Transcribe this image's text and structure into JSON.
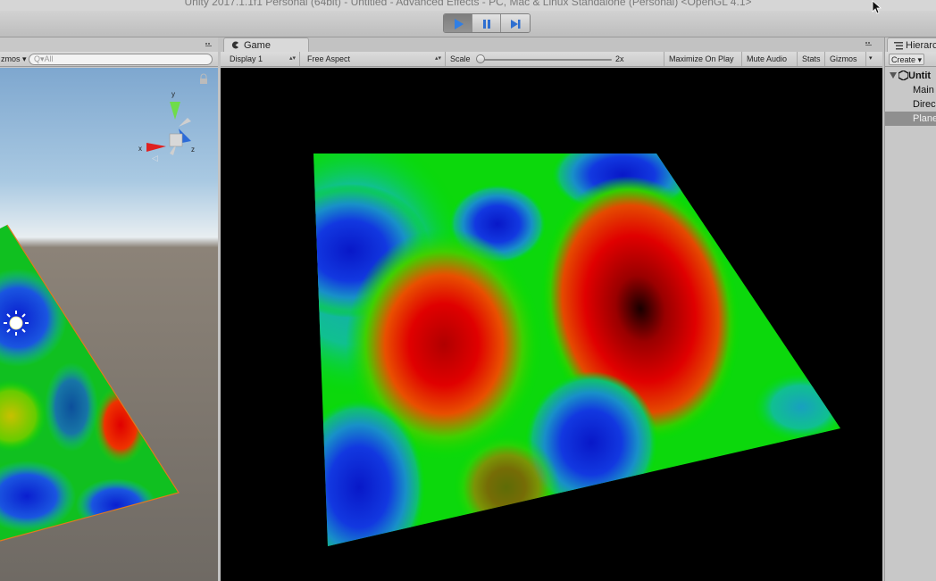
{
  "window": {
    "title": "Unity 2017.1.1f1 Personal (64bit) - Untitled - Advanced Effects - PC, Mac & Linux Standalone (Personal) <OpenGL 4.1>"
  },
  "toolbar": {
    "play_icon": "play-icon",
    "pause_icon": "pause-icon",
    "step_icon": "step-icon",
    "accent": "#3a7be0"
  },
  "scene": {
    "gizmos_label": "zmos ▾",
    "search_placeholder": "Q▾All"
  },
  "game": {
    "tab_label": "Game",
    "display_label": "Display 1",
    "aspect_label": "Free Aspect",
    "scale_label": "Scale",
    "scale_value": "2x",
    "maximize_label": "Maximize On Play",
    "mute_label": "Mute Audio",
    "stats_label": "Stats",
    "gizmos_label": "Gizmos"
  },
  "hierarchy": {
    "tab_label": "Hierarc",
    "create_label": "Create ▾",
    "scene_name": "Untit",
    "items": [
      {
        "label": "Main",
        "selected": false
      },
      {
        "label": "Direc",
        "selected": false
      },
      {
        "label": "Plane",
        "selected": true
      }
    ]
  },
  "colors": {
    "heat_red": "#e60000",
    "heat_green": "#00e000",
    "heat_blue": "#0a2ae0",
    "heat_dark": "#200000"
  }
}
